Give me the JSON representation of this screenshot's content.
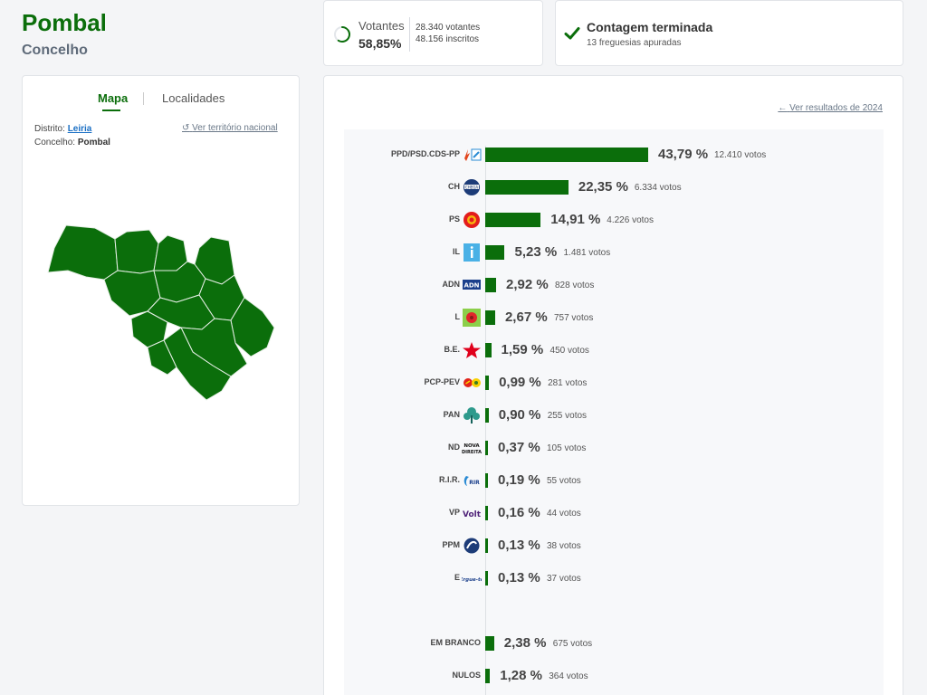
{
  "header": {
    "title": "Pombal",
    "subtitle": "Concelho"
  },
  "turnout": {
    "label": "Votantes",
    "percent": "58,85%",
    "fraction": 0.5885,
    "votes": "28.340 votantes",
    "registered": "48.156 inscritos"
  },
  "count": {
    "title": "Contagem terminada",
    "subtitle": "13 freguesias apuradas"
  },
  "map_panel": {
    "tabs": [
      "Mapa",
      "Localidades"
    ],
    "district_label": "Distrito:",
    "district_value": "Leiria",
    "council_label": "Concelho:",
    "council_value": "Pombal",
    "national_link": "Ver território nacional"
  },
  "results_panel": {
    "prev_link": "Ver resultados de 2024"
  },
  "colors": {
    "accent": "#0b6e0b",
    "bar": "#0b6e0b",
    "link": "#1a6fc4"
  },
  "chart_data": {
    "type": "bar",
    "orientation": "horizontal",
    "parties": [
      {
        "name": "PPD/PSD.CDS-PP",
        "pct": "43,79 %",
        "value": 43.79,
        "votes": "12.410 votos",
        "logo": "psd-cds-logo"
      },
      {
        "name": "CH",
        "pct": "22,35 %",
        "value": 22.35,
        "votes": "6.334 votos",
        "logo": "chega-logo"
      },
      {
        "name": "PS",
        "pct": "14,91 %",
        "value": 14.91,
        "votes": "4.226 votos",
        "logo": "ps-logo"
      },
      {
        "name": "IL",
        "pct": "5,23 %",
        "value": 5.23,
        "votes": "1.481 votos",
        "logo": "il-logo"
      },
      {
        "name": "ADN",
        "pct": "2,92 %",
        "value": 2.92,
        "votes": "828 votos",
        "logo": "adn-logo"
      },
      {
        "name": "L",
        "pct": "2,67 %",
        "value": 2.67,
        "votes": "757 votos",
        "logo": "livre-logo"
      },
      {
        "name": "B.E.",
        "pct": "1,59 %",
        "value": 1.59,
        "votes": "450 votos",
        "logo": "be-logo"
      },
      {
        "name": "PCP-PEV",
        "pct": "0,99 %",
        "value": 0.99,
        "votes": "281 votos",
        "logo": "cdu-logo"
      },
      {
        "name": "PAN",
        "pct": "0,90 %",
        "value": 0.9,
        "votes": "255 votos",
        "logo": "pan-logo"
      },
      {
        "name": "ND",
        "pct": "0,37 %",
        "value": 0.37,
        "votes": "105 votos",
        "logo": "nd-logo"
      },
      {
        "name": "R.I.R.",
        "pct": "0,19 %",
        "value": 0.19,
        "votes": "55 votos",
        "logo": "rir-logo"
      },
      {
        "name": "VP",
        "pct": "0,16 %",
        "value": 0.16,
        "votes": "44 votos",
        "logo": "volt-logo"
      },
      {
        "name": "PPM",
        "pct": "0,13 %",
        "value": 0.13,
        "votes": "38 votos",
        "logo": "ppm-logo"
      },
      {
        "name": "E",
        "pct": "0,13 %",
        "value": 0.13,
        "votes": "37 votos",
        "logo": "ergue-te-logo"
      }
    ],
    "others": [
      {
        "name": "EM BRANCO",
        "pct": "2,38 %",
        "value": 2.38,
        "votes": "675 votos"
      },
      {
        "name": "NULOS",
        "pct": "1,28 %",
        "value": 1.28,
        "votes": "364 votos"
      }
    ]
  }
}
